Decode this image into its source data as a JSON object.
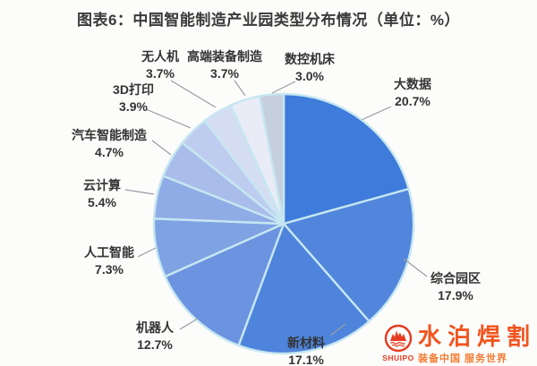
{
  "title": "图表6：中国智能制造产业园类型分布情况（单位：%）",
  "chart_data": {
    "type": "pie",
    "title": "图表6：中国智能制造产业园类型分布情况（单位：%）",
    "unit": "%",
    "start_angle_deg": 0,
    "direction": "clockwise",
    "legend_position": "none",
    "center": [
      317,
      250
    ],
    "radius": 145,
    "separator_color": "#c6e7f1",
    "leader_color": "#999da3",
    "slices": [
      {
        "label": "大数据",
        "value": 20.7,
        "pct": "20.7%",
        "color": "#3e7bda"
      },
      {
        "label": "综合园区",
        "value": 17.9,
        "pct": "17.9%",
        "color": "#5286dc"
      },
      {
        "label": "新材料",
        "value": 17.1,
        "pct": "17.1%",
        "color": "#4e84db"
      },
      {
        "label": "机器人",
        "value": 12.7,
        "pct": "12.7%",
        "color": "#6b93df"
      },
      {
        "label": "人工智能",
        "value": 7.3,
        "pct": "7.3%",
        "color": "#7fa2e3"
      },
      {
        "label": "云计算",
        "value": 5.4,
        "pct": "5.4%",
        "color": "#90ace6"
      },
      {
        "label": "汽车智能制造",
        "value": 4.7,
        "pct": "4.7%",
        "color": "#a9bcea"
      },
      {
        "label": "3D打印",
        "value": 3.9,
        "pct": "3.9%",
        "color": "#becdef"
      },
      {
        "label": "无人机",
        "value": 3.7,
        "pct": "3.7%",
        "color": "#d5ddf2"
      },
      {
        "label": "高端装备制造",
        "value": 3.7,
        "pct": "3.7%",
        "color": "#e9ecf6"
      },
      {
        "label": "数控机床",
        "value": 3.0,
        "pct": "3.0%",
        "color": "#c6cfdd"
      }
    ],
    "label_layout": [
      {
        "line": [
          437,
          119,
          404,
          134
        ]
      },
      {
        "line": [
          477,
          309,
          451,
          289
        ]
      },
      {
        "line": [
          369,
          375,
          386,
          362
        ]
      },
      {
        "line": [
          201,
          368,
          221,
          356
        ]
      },
      {
        "line": [
          154,
          287,
          174,
          277
        ]
      },
      {
        "line": [
          140,
          212,
          172,
          217
        ]
      },
      {
        "line": [
          170,
          157,
          191,
          173
        ]
      },
      {
        "line": [
          163,
          122,
          213,
          143
        ]
      },
      {
        "line": [
          191,
          90,
          241,
          120
        ]
      },
      {
        "line": [
          262,
          90,
          274,
          107
        ]
      },
      {
        "line": [
          330,
          91,
          304,
          104
        ]
      }
    ]
  },
  "watermark": {
    "brand": "水泊焊割",
    "brand_en": "SHUIPO",
    "slogan": "装备中国 服务世界",
    "accent_color": "#f2541e"
  }
}
